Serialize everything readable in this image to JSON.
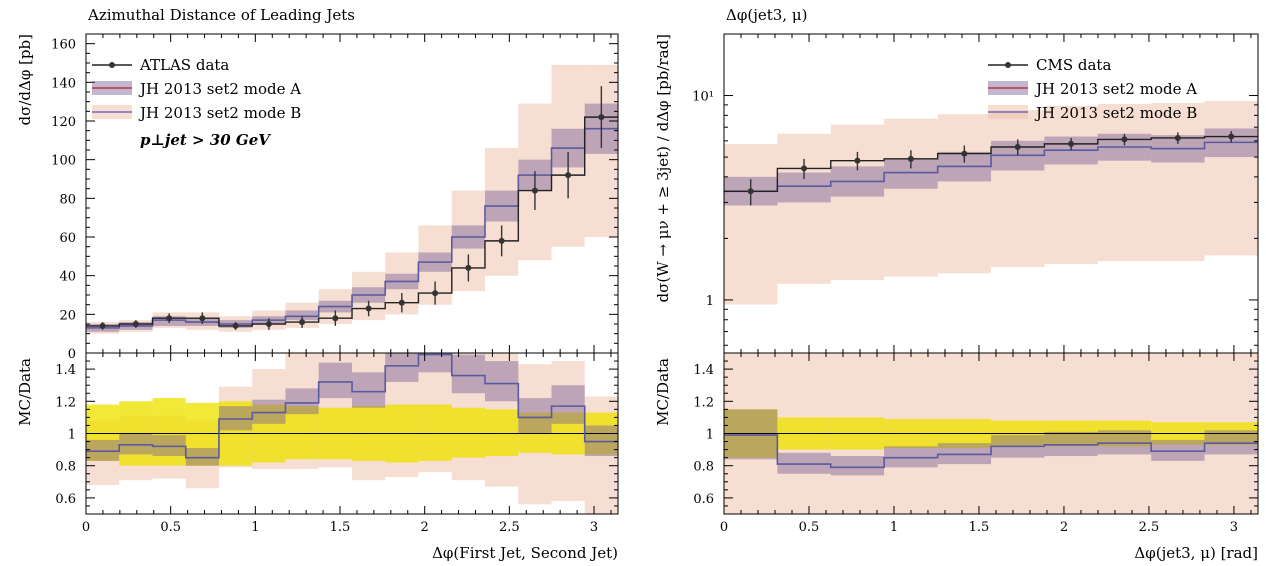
{
  "chart_data": [
    {
      "type": "step-histogram-with-ratio",
      "title": "Azimuthal Distance of Leading Jets",
      "xlabel": "Δφ(First Jet, Second Jet)",
      "ylabel": "dσ/dΔφ [pb]",
      "ratio_ylabel": "MC/Data",
      "annotation": "p⊥jet > 30 GeV",
      "xlim": [
        0,
        3.1416
      ],
      "ylim": [
        0,
        165
      ],
      "ratio_ylim": [
        0.5,
        1.5
      ],
      "x_ticks": [
        "0",
        "0.5",
        "1",
        "1.5",
        "2",
        "2.5",
        "3"
      ],
      "y_ticks": [
        "0",
        "20",
        "40",
        "60",
        "80",
        "100",
        "120",
        "140",
        "160"
      ],
      "ratio_ticks": [
        "0.6",
        "0.8",
        "1",
        "1.2",
        "1.4"
      ],
      "legend": [
        "ATLAS data",
        "JH 2013 set2 mode A",
        "JH 2013 set2 mode B"
      ],
      "legend_position": "top-left",
      "bin_edges": [
        0,
        0.196,
        0.393,
        0.589,
        0.785,
        0.982,
        1.178,
        1.374,
        1.571,
        1.767,
        1.963,
        2.16,
        2.356,
        2.553,
        2.749,
        2.945,
        3.1416
      ],
      "data": {
        "values": [
          14,
          15,
          18,
          18,
          14,
          15,
          16,
          18,
          23,
          26,
          31,
          44,
          58,
          84,
          92,
          122
        ],
        "errors": [
          2,
          2,
          2.5,
          3,
          2,
          3,
          3,
          4,
          4,
          5,
          6,
          7,
          8,
          10,
          12,
          16
        ],
        "ratio_band_lo": [
          0.83,
          0.8,
          0.8,
          0.8,
          0.8,
          0.82,
          0.84,
          0.84,
          0.83,
          0.82,
          0.83,
          0.85,
          0.86,
          0.88,
          0.87,
          0.87
        ],
        "ratio_band_hi": [
          1.18,
          1.2,
          1.22,
          1.19,
          1.2,
          1.18,
          1.17,
          1.16,
          1.17,
          1.18,
          1.18,
          1.16,
          1.15,
          1.13,
          1.13,
          1.13
        ]
      },
      "series": [
        {
          "name": "JH 2013 set2 mode A",
          "values": [
            13,
            14,
            17,
            16,
            15,
            17,
            19,
            24,
            30,
            37,
            47,
            60,
            76,
            92,
            106,
            116
          ],
          "band_lo": [
            11,
            12,
            14,
            14,
            13,
            15,
            17,
            21,
            26,
            33,
            42,
            54,
            68,
            84,
            96,
            103
          ],
          "band_hi": [
            15,
            16,
            19,
            18,
            17,
            19,
            22,
            27,
            34,
            41,
            52,
            66,
            84,
            100,
            116,
            129
          ],
          "ratio": [
            0.89,
            0.93,
            0.92,
            0.85,
            1.09,
            1.13,
            1.19,
            1.32,
            1.26,
            1.42,
            1.49,
            1.36,
            1.31,
            1.1,
            1.17,
            0.95
          ],
          "ratio_lo": [
            0.83,
            0.87,
            0.86,
            0.8,
            1.02,
            1.06,
            1.12,
            1.22,
            1.16,
            1.32,
            1.38,
            1.25,
            1.2,
            1.0,
            1.06,
            0.86
          ],
          "ratio_hi": [
            0.96,
            1.0,
            0.99,
            0.91,
            1.17,
            1.21,
            1.28,
            1.44,
            1.38,
            1.53,
            1.6,
            1.49,
            1.45,
            1.22,
            1.3,
            1.05
          ]
        },
        {
          "name": "JH 2013 set2 mode B",
          "values": [
            13,
            14,
            17,
            16,
            15,
            17,
            19,
            24,
            30,
            37,
            47,
            60,
            76,
            92,
            106,
            116
          ],
          "band_lo": [
            10,
            11,
            13,
            12,
            11,
            12,
            13,
            15,
            17,
            20,
            25,
            32,
            40,
            48,
            55,
            60
          ],
          "band_hi": [
            16,
            17,
            21,
            21,
            19,
            22,
            26,
            33,
            42,
            52,
            66,
            84,
            106,
            129,
            149,
            149
          ],
          "ratio": [
            0.89,
            0.93,
            0.92,
            0.85,
            1.09,
            1.13,
            1.19,
            1.32,
            1.26,
            1.42,
            1.49,
            1.36,
            1.31,
            1.1,
            1.17,
            0.95
          ],
          "ratio_lo": [
            0.68,
            0.71,
            0.72,
            0.66,
            0.79,
            0.78,
            0.78,
            0.79,
            0.71,
            0.73,
            0.76,
            0.71,
            0.67,
            0.56,
            0.58,
            0.5
          ],
          "ratio_hi": [
            1.08,
            1.11,
            1.11,
            1.08,
            1.29,
            1.4,
            1.5,
            1.5,
            1.5,
            1.5,
            1.5,
            1.5,
            1.5,
            1.43,
            1.45,
            1.23
          ]
        }
      ]
    },
    {
      "type": "step-histogram-with-ratio",
      "title": "Δφ(jet3, μ)",
      "xlabel": "Δφ(jet3, μ) [rad]",
      "ylabel": "dσ(W → μν + ≥ 3jet) / dΔφ [pb/rad]",
      "ratio_ylabel": "MC/Data",
      "y_scale": "log",
      "xlim": [
        0,
        3.1416
      ],
      "ylim": [
        0.55,
        20
      ],
      "ratio_ylim": [
        0.5,
        1.5
      ],
      "x_ticks": [
        "0",
        "0.5",
        "1",
        "1.5",
        "2",
        "2.5",
        "3"
      ],
      "y_ticks_major": [
        "1",
        "10¹"
      ],
      "ratio_ticks": [
        "0.6",
        "0.8",
        "1",
        "1.2",
        "1.4"
      ],
      "legend": [
        "CMS data",
        "JH 2013 set2 mode A",
        "JH 2013 set2 mode B"
      ],
      "legend_position": "top-right",
      "bin_edges": [
        0,
        0.314,
        0.628,
        0.942,
        1.257,
        1.571,
        1.885,
        2.199,
        2.513,
        2.827,
        3.1416
      ],
      "data": {
        "values": [
          3.4,
          4.4,
          4.8,
          4.9,
          5.2,
          5.6,
          5.8,
          6.1,
          6.2,
          6.3
        ],
        "errors": [
          0.5,
          0.5,
          0.5,
          0.5,
          0.5,
          0.5,
          0.4,
          0.4,
          0.4,
          0.4
        ],
        "ratio_band_lo": [
          0.85,
          0.9,
          0.9,
          0.91,
          0.91,
          0.92,
          0.92,
          0.92,
          0.93,
          0.93
        ],
        "ratio_band_hi": [
          1.15,
          1.1,
          1.1,
          1.09,
          1.09,
          1.08,
          1.08,
          1.08,
          1.07,
          1.07
        ]
      },
      "series": [
        {
          "name": "JH 2013 set2 mode A",
          "values": [
            3.4,
            3.6,
            3.8,
            4.2,
            4.5,
            5.1,
            5.4,
            5.6,
            5.5,
            5.9
          ],
          "band_lo": [
            2.9,
            3.0,
            3.2,
            3.5,
            3.8,
            4.3,
            4.6,
            4.8,
            4.7,
            5.0
          ],
          "band_hi": [
            4.0,
            4.2,
            4.5,
            4.9,
            5.3,
            6.0,
            6.3,
            6.5,
            6.4,
            6.9
          ],
          "ratio": [
            0.99,
            0.81,
            0.79,
            0.85,
            0.87,
            0.92,
            0.93,
            0.94,
            0.89,
            0.94
          ],
          "ratio_lo": [
            0.84,
            0.75,
            0.74,
            0.79,
            0.81,
            0.85,
            0.86,
            0.87,
            0.83,
            0.87
          ],
          "ratio_hi": [
            1.15,
            0.88,
            0.86,
            0.92,
            0.94,
            0.99,
            1.01,
            1.02,
            0.96,
            1.02
          ]
        },
        {
          "name": "JH 2013 set2 mode B",
          "values": [
            3.4,
            3.6,
            3.8,
            4.2,
            4.5,
            5.1,
            5.4,
            5.6,
            5.5,
            5.9
          ],
          "band_lo": [
            0.95,
            1.2,
            1.25,
            1.3,
            1.35,
            1.45,
            1.5,
            1.55,
            1.55,
            1.65
          ],
          "band_hi": [
            5.8,
            6.5,
            7.2,
            7.7,
            8.1,
            8.5,
            8.9,
            9.1,
            9.2,
            9.4
          ],
          "ratio": [
            0.99,
            0.81,
            0.79,
            0.85,
            0.87,
            0.92,
            0.93,
            0.94,
            0.89,
            0.94
          ],
          "ratio_lo": [
            0.5,
            0.5,
            0.5,
            0.5,
            0.5,
            0.5,
            0.5,
            0.5,
            0.5,
            0.5
          ],
          "ratio_hi": [
            1.5,
            1.5,
            1.5,
            1.5,
            1.5,
            1.5,
            1.5,
            1.5,
            1.5,
            1.5
          ]
        }
      ]
    }
  ]
}
